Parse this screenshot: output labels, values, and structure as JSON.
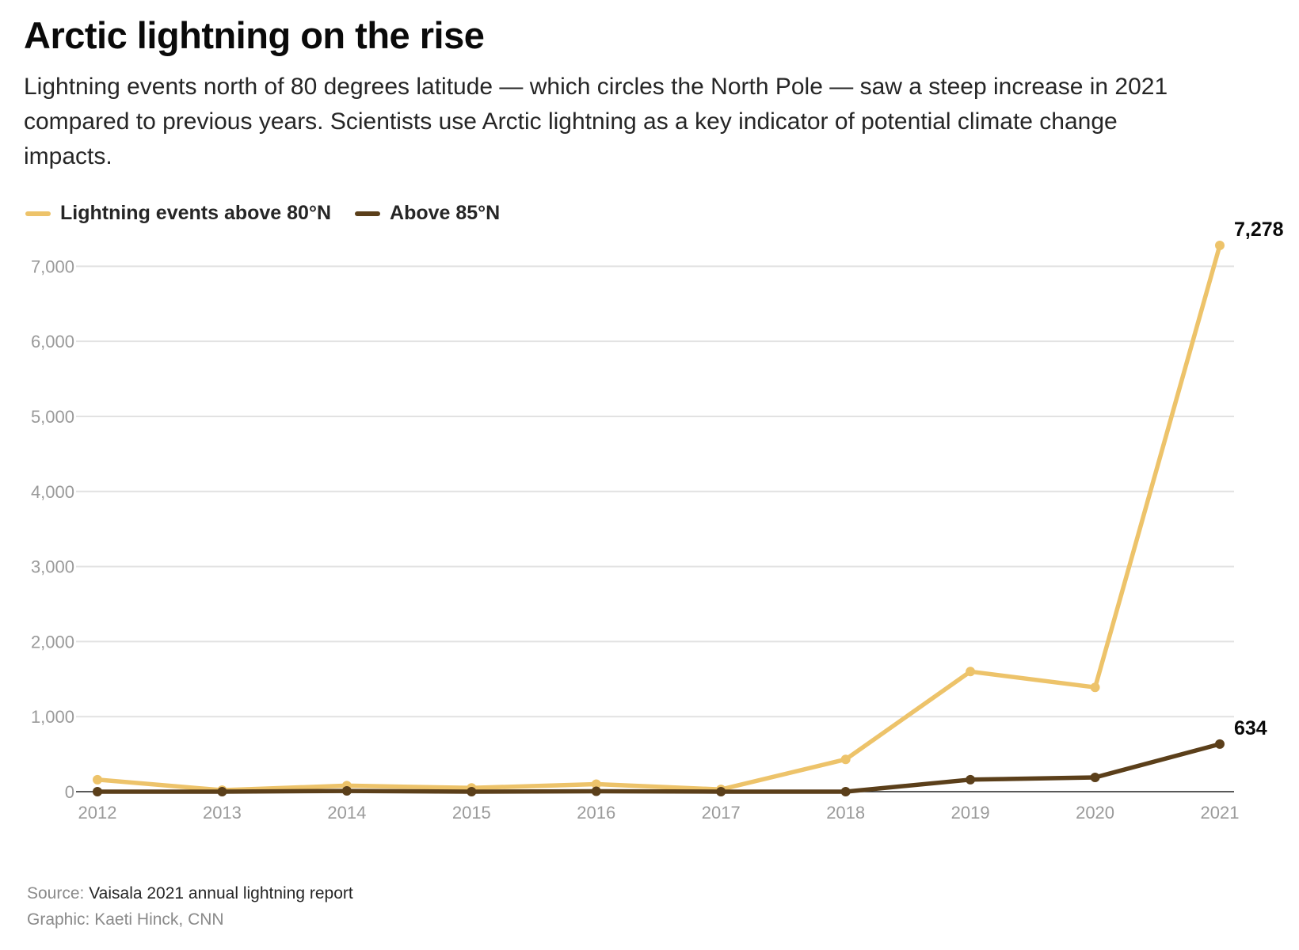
{
  "chart_data": {
    "type": "line",
    "title": "Arctic lightning on the rise",
    "subtitle": "Lightning events north of 80 degrees latitude — which circles the North Pole — saw a steep increase in 2021 compared to previous years. Scientists use Arctic lightning as a key indicator of potential climate change impacts.",
    "xlabel": "",
    "ylabel": "",
    "x": [
      "2012",
      "2013",
      "2014",
      "2015",
      "2016",
      "2017",
      "2018",
      "2019",
      "2020",
      "2021"
    ],
    "ylim": [
      0,
      7278
    ],
    "yticks": [
      0,
      1000,
      2000,
      3000,
      4000,
      5000,
      6000,
      7000
    ],
    "ytick_labels": [
      "0",
      "1,000",
      "2,000",
      "3,000",
      "4,000",
      "5,000",
      "6,000",
      "7,000"
    ],
    "grid": true,
    "legend_position": "top-left",
    "series": [
      {
        "name": "Lightning events above 80°N",
        "color": "#edc36a",
        "values": [
          160,
          20,
          80,
          50,
          100,
          30,
          430,
          1600,
          1390,
          7278
        ],
        "end_label": "7,278"
      },
      {
        "name": "Above 85°N",
        "color": "#5b3f1a",
        "values": [
          0,
          0,
          10,
          0,
          5,
          0,
          0,
          160,
          190,
          634
        ],
        "end_label": "634"
      }
    ]
  },
  "footer": {
    "source_label": "Source:",
    "source_value": "Vaisala 2021 annual lightning report",
    "credit": "Graphic: Kaeti Hinck, CNN"
  }
}
